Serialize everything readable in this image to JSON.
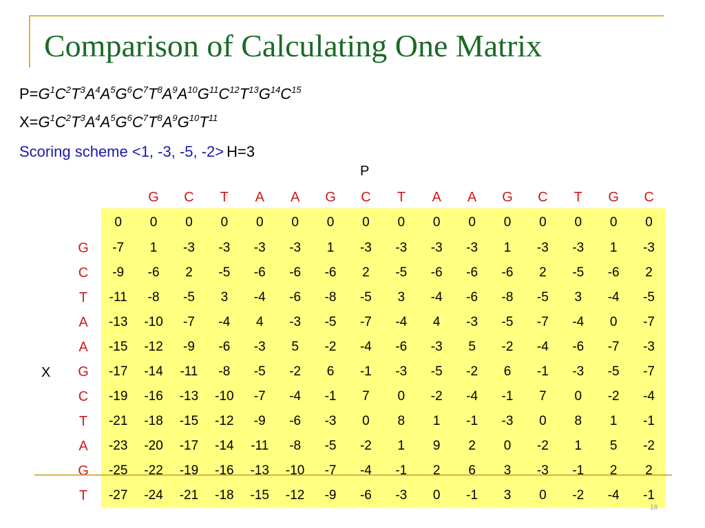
{
  "slide": {
    "title": "Comparison of Calculating One Matrix",
    "p_prefix": "P=",
    "p_sequence": [
      {
        "b": "G",
        "n": "1"
      },
      {
        "b": "C",
        "n": "2"
      },
      {
        "b": "T",
        "n": "3"
      },
      {
        "b": "A",
        "n": "4"
      },
      {
        "b": "A",
        "n": "5"
      },
      {
        "b": "G",
        "n": "6"
      },
      {
        "b": "C",
        "n": "7"
      },
      {
        "b": "T",
        "n": "8"
      },
      {
        "b": "A",
        "n": "9"
      },
      {
        "b": "A",
        "n": "10"
      },
      {
        "b": "G",
        "n": "11"
      },
      {
        "b": "C",
        "n": "12"
      },
      {
        "b": "T",
        "n": "13"
      },
      {
        "b": "G",
        "n": "14"
      },
      {
        "b": "C",
        "n": "15"
      }
    ],
    "x_prefix": "X=",
    "x_sequence": [
      {
        "b": "G",
        "n": "1"
      },
      {
        "b": "C",
        "n": "2"
      },
      {
        "b": "T",
        "n": "3"
      },
      {
        "b": "A",
        "n": "4"
      },
      {
        "b": "A",
        "n": "5"
      },
      {
        "b": "G",
        "n": "6"
      },
      {
        "b": "C",
        "n": "7"
      },
      {
        "b": "T",
        "n": "8"
      },
      {
        "b": "A",
        "n": "9"
      },
      {
        "b": "G",
        "n": "10"
      },
      {
        "b": "T",
        "n": "11"
      }
    ],
    "scoring_label": "Scoring scheme <1, -3, -5, -2>",
    "h_label": "H=3",
    "p_axis_label": "P",
    "x_axis_label": "X",
    "page_number": "18",
    "colors": {
      "title": "#1a6a27",
      "header_letters": "#d01818",
      "scoring": "#1a1aa8",
      "matrix_bg": "#ffff80",
      "rule": "#d6b34a"
    }
  },
  "matrix": {
    "col_headers": [
      "G",
      "C",
      "T",
      "A",
      "A",
      "G",
      "C",
      "T",
      "A",
      "A",
      "G",
      "C",
      "T",
      "G",
      "C"
    ],
    "row_headers": [
      "",
      "G",
      "C",
      "T",
      "A",
      "A",
      "G",
      "C",
      "T",
      "A",
      "G",
      "T"
    ],
    "rows": [
      [
        "0",
        "0",
        "0",
        "0",
        "0",
        "0",
        "0",
        "0",
        "0",
        "0",
        "0",
        "0",
        "0",
        "0",
        "0",
        "0"
      ],
      [
        "-7",
        "1",
        "-3",
        "-3",
        "-3",
        "-3",
        "1",
        "-3",
        "-3",
        "-3",
        "-3",
        "1",
        "-3",
        "-3",
        "1",
        "-3"
      ],
      [
        "-9",
        "-6",
        "2",
        "-5",
        "-6",
        "-6",
        "-6",
        "2",
        "-5",
        "-6",
        "-6",
        "-6",
        "2",
        "-5",
        "-6",
        "2"
      ],
      [
        "-11",
        "-8",
        "-5",
        "3",
        "-4",
        "-6",
        "-8",
        "-5",
        "3",
        "-4",
        "-6",
        "-8",
        "-5",
        "3",
        "-4",
        "-5"
      ],
      [
        "-13",
        "-10",
        "-7",
        "-4",
        "4",
        "-3",
        "-5",
        "-7",
        "-4",
        "4",
        "-3",
        "-5",
        "-7",
        "-4",
        "0",
        "-7"
      ],
      [
        "-15",
        "-12",
        "-9",
        "-6",
        "-3",
        "5",
        "-2",
        "-4",
        "-6",
        "-3",
        "5",
        "-2",
        "-4",
        "-6",
        "-7",
        "-3"
      ],
      [
        "-17",
        "-14",
        "-11",
        "-8",
        "-5",
        "-2",
        "6",
        "-1",
        "-3",
        "-5",
        "-2",
        "6",
        "-1",
        "-3",
        "-5",
        "-7"
      ],
      [
        "-19",
        "-16",
        "-13",
        "-10",
        "-7",
        "-4",
        "-1",
        "7",
        "0",
        "-2",
        "-4",
        "-1",
        "7",
        "0",
        "-2",
        "-4"
      ],
      [
        "-21",
        "-18",
        "-15",
        "-12",
        "-9",
        "-6",
        "-3",
        "0",
        "8",
        "1",
        "-1",
        "-3",
        "0",
        "8",
        "1",
        "-1"
      ],
      [
        "-23",
        "-20",
        "-17",
        "-14",
        "-11",
        "-8",
        "-5",
        "-2",
        "1",
        "9",
        "2",
        "0",
        "-2",
        "1",
        "5",
        "-2"
      ],
      [
        "-25",
        "-22",
        "-19",
        "-16",
        "-13",
        "-10",
        "-7",
        "-4",
        "-1",
        "2",
        "6",
        "3",
        "-3",
        "-1",
        "2",
        "2"
      ],
      [
        "-27",
        "-24",
        "-21",
        "-18",
        "-15",
        "-12",
        "-9",
        "-6",
        "-3",
        "0",
        "-1",
        "3",
        "0",
        "-2",
        "-4",
        "-1"
      ]
    ]
  }
}
